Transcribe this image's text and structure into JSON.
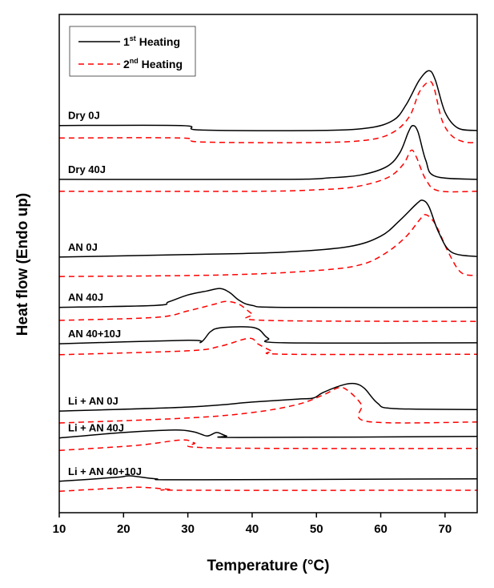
{
  "chart_data": {
    "type": "line",
    "title": "",
    "xlabel": "Temperature (°C)",
    "ylabel": "Heat flow (Endo up)",
    "xlim": [
      10,
      75
    ],
    "ylim": [
      0,
      100
    ],
    "xticks": [
      10,
      20,
      30,
      40,
      50,
      60,
      70
    ],
    "yticks": [],
    "grid": false,
    "legend": {
      "placement": "top-left",
      "entries": [
        {
          "base": "1",
          "sup": "st",
          "rest": " Heating",
          "style": "solid",
          "color": "#000000"
        },
        {
          "base": "2",
          "sup": "nd",
          "rest": " Heating",
          "style": "dashed",
          "color": "#ff0000"
        }
      ]
    },
    "samples": [
      {
        "label": "Dry 0J",
        "first": [
          [
            10,
            77.7
          ],
          [
            29,
            77.7
          ],
          [
            32,
            76.8
          ],
          [
            50,
            76.7
          ],
          [
            58,
            77.2
          ],
          [
            62,
            78.8
          ],
          [
            64,
            82.0
          ],
          [
            66,
            86.8
          ],
          [
            67.5,
            88.7
          ],
          [
            68.5,
            86.8
          ],
          [
            70,
            80.4
          ],
          [
            72,
            77.2
          ],
          [
            75,
            76.7
          ]
        ],
        "second": [
          [
            10,
            75.2
          ],
          [
            29,
            75.2
          ],
          [
            32,
            74.4
          ],
          [
            50,
            74.3
          ],
          [
            58,
            74.8
          ],
          [
            62,
            76.4
          ],
          [
            64.5,
            79.6
          ],
          [
            66,
            84.4
          ],
          [
            67.5,
            86.5
          ],
          [
            68.3,
            85.2
          ],
          [
            69.5,
            78.9
          ],
          [
            71,
            75.7
          ],
          [
            73,
            74.4
          ],
          [
            75,
            74.3
          ]
        ]
      },
      {
        "label": "Dry 40J",
        "first": [
          [
            10,
            66.9
          ],
          [
            45,
            66.9
          ],
          [
            52,
            67.2
          ],
          [
            57,
            67.8
          ],
          [
            61,
            69.5
          ],
          [
            63,
            72.3
          ],
          [
            64.3,
            76.4
          ],
          [
            65,
            77.7
          ],
          [
            65.8,
            76.4
          ],
          [
            67,
            70.7
          ],
          [
            68.5,
            67.5
          ],
          [
            75,
            66.9
          ]
        ],
        "second": [
          [
            10,
            64.5
          ],
          [
            40,
            64.5
          ],
          [
            50,
            64.8
          ],
          [
            56,
            65.4
          ],
          [
            61,
            67.2
          ],
          [
            63.5,
            69.9
          ],
          [
            64.7,
            72.7
          ],
          [
            65.5,
            71.5
          ],
          [
            67,
            66.9
          ],
          [
            69,
            64.6
          ],
          [
            75,
            64.5
          ]
        ]
      },
      {
        "label": "AN 0J",
        "first": [
          [
            10,
            51.3
          ],
          [
            30,
            51.8
          ],
          [
            45,
            52.3
          ],
          [
            55,
            53.4
          ],
          [
            60,
            55.5
          ],
          [
            63,
            58.7
          ],
          [
            65.5,
            61.9
          ],
          [
            66.5,
            62.7
          ],
          [
            67.5,
            61.4
          ],
          [
            69,
            56.3
          ],
          [
            71,
            52.3
          ],
          [
            75,
            51.4
          ]
        ],
        "second": [
          [
            10,
            47.4
          ],
          [
            35,
            47.7
          ],
          [
            50,
            48.6
          ],
          [
            57,
            49.8
          ],
          [
            61,
            52.3
          ],
          [
            64,
            55.5
          ],
          [
            66,
            58.7
          ],
          [
            67,
            59.8
          ],
          [
            68.5,
            57.9
          ],
          [
            70.5,
            52.3
          ],
          [
            72.5,
            48.2
          ],
          [
            75,
            47.6
          ]
        ]
      },
      {
        "label": "AN 40J",
        "first": [
          [
            10,
            41.2
          ],
          [
            25,
            41.6
          ],
          [
            27,
            42.3
          ],
          [
            30,
            43.7
          ],
          [
            33,
            44.5
          ],
          [
            35,
            45.0
          ],
          [
            36.5,
            44.2
          ],
          [
            38,
            42.6
          ],
          [
            40,
            41.6
          ],
          [
            45,
            41.2
          ],
          [
            75,
            41.2
          ]
        ],
        "second": [
          [
            10,
            38.6
          ],
          [
            25,
            39.2
          ],
          [
            30,
            40.5
          ],
          [
            34,
            41.8
          ],
          [
            36,
            42.4
          ],
          [
            38,
            41.8
          ],
          [
            40,
            39.9
          ],
          [
            42,
            38.6
          ],
          [
            75,
            38.4
          ]
        ]
      },
      {
        "label": "AN 40+10J",
        "first": [
          [
            10,
            33.9
          ],
          [
            30,
            34.6
          ],
          [
            32,
            34.2
          ],
          [
            33.5,
            36.3
          ],
          [
            35,
            37.1
          ],
          [
            39,
            37.3
          ],
          [
            41,
            36.8
          ],
          [
            42.5,
            35.0
          ],
          [
            45,
            34.1
          ],
          [
            75,
            34.1
          ]
        ],
        "second": [
          [
            10,
            31.7
          ],
          [
            30,
            32.5
          ],
          [
            35,
            33.4
          ],
          [
            39.5,
            35.0
          ],
          [
            41,
            33.8
          ],
          [
            43,
            32.5
          ],
          [
            45,
            31.8
          ],
          [
            75,
            31.8
          ]
        ]
      },
      {
        "label": "Li + AN 0J",
        "first": [
          [
            10,
            20.4
          ],
          [
            30,
            21.2
          ],
          [
            40,
            22.2
          ],
          [
            47,
            22.8
          ],
          [
            49.5,
            23.0
          ],
          [
            51,
            24.1
          ],
          [
            54,
            25.6
          ],
          [
            56,
            25.9
          ],
          [
            57.5,
            24.9
          ],
          [
            59.5,
            22.0
          ],
          [
            62,
            20.9
          ],
          [
            75,
            20.7
          ]
        ],
        "second": [
          [
            10,
            18.0
          ],
          [
            30,
            19.0
          ],
          [
            40,
            20.1
          ],
          [
            47,
            21.7
          ],
          [
            51,
            23.6
          ],
          [
            53.5,
            25.1
          ],
          [
            55,
            24.4
          ],
          [
            57,
            21.7
          ],
          [
            58,
            18.3
          ],
          [
            75,
            18.2
          ]
        ]
      },
      {
        "label": "Li + AN 40J",
        "first": [
          [
            10,
            15.0
          ],
          [
            20,
            16.1
          ],
          [
            28,
            16.6
          ],
          [
            31,
            16.2
          ],
          [
            33,
            15.4
          ],
          [
            34.5,
            16.1
          ],
          [
            36,
            15.4
          ],
          [
            38,
            15.1
          ],
          [
            75,
            15.3
          ]
        ],
        "second": [
          [
            10,
            12.5
          ],
          [
            22,
            13.5
          ],
          [
            29,
            14.6
          ],
          [
            31,
            14.0
          ],
          [
            34,
            13.0
          ],
          [
            75,
            12.9
          ]
        ]
      },
      {
        "label": "Li + AN 40+10J",
        "first": [
          [
            10,
            6.3
          ],
          [
            19,
            7.1
          ],
          [
            21,
            7.4
          ],
          [
            25,
            6.8
          ],
          [
            30,
            6.6
          ],
          [
            75,
            6.8
          ]
        ],
        "second": [
          [
            10,
            4.3
          ],
          [
            20,
            5.0
          ],
          [
            23,
            5.1
          ],
          [
            27,
            4.7
          ],
          [
            30,
            4.5
          ],
          [
            75,
            4.5
          ]
        ]
      }
    ]
  }
}
